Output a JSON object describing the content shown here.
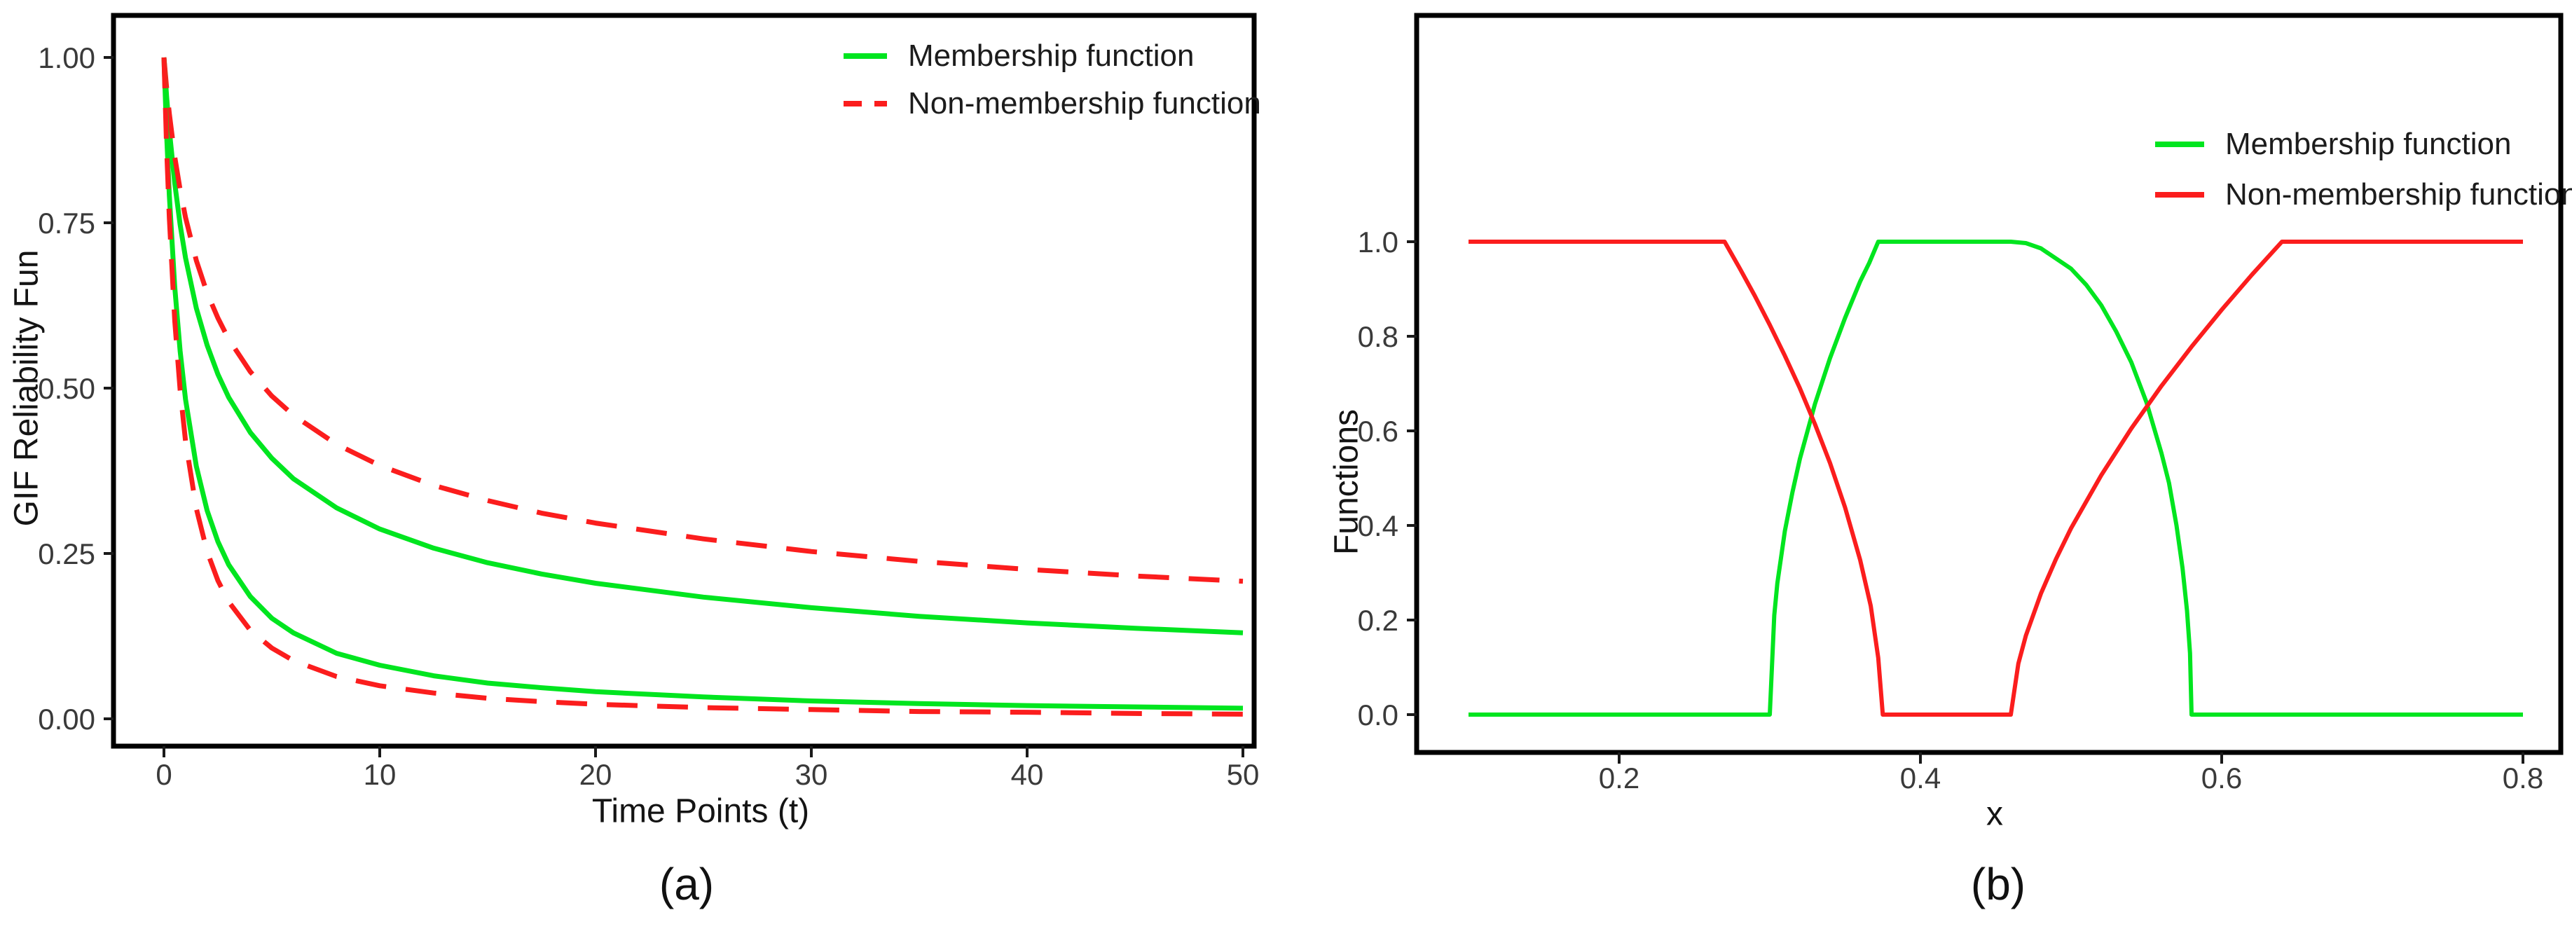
{
  "figure": {
    "background": "#ffffff"
  },
  "colors": {
    "membership": "#00E51F",
    "non_membership": "#FB1D1D",
    "frame": "#000000",
    "tick_mark": "#1a1a1a",
    "tick_text": "#3a3a3a",
    "label_text": "#141414"
  },
  "chart_data": [
    {
      "id": "a",
      "type": "line",
      "caption": "(a)",
      "xlabel": "Time Points (t)",
      "ylabel": "GIF Reliability Fun",
      "xlim": [
        0,
        50
      ],
      "ylim": [
        0,
        1
      ],
      "grid": false,
      "legend_position": "top-right-inside",
      "xticks": {
        "values": [
          0,
          10,
          20,
          30,
          40,
          50
        ],
        "labels": [
          "0",
          "10",
          "20",
          "30",
          "40",
          "50"
        ]
      },
      "yticks": {
        "values": [
          1,
          0.75,
          0.5,
          0.25,
          0
        ],
        "labels": [
          "1.00",
          "0.75",
          "0.50",
          "0.25",
          "0.00"
        ]
      },
      "legend": [
        {
          "label": "Membership function",
          "color_key": "membership",
          "style": "solid"
        },
        {
          "label": "Non-membership function",
          "color_key": "non_membership",
          "style": "dashed"
        }
      ],
      "series": [
        {
          "name": "membership-upper",
          "color_key": "membership",
          "style": "solid",
          "x": [
            0,
            0.125,
            0.25,
            0.5,
            0.75,
            1,
            1.5,
            2,
            2.5,
            3,
            4,
            5,
            6,
            8,
            10,
            12.5,
            15,
            17.5,
            20,
            25,
            30,
            35,
            40,
            45,
            50
          ],
          "y": [
            1,
            0.941,
            0.89,
            0.81,
            0.747,
            0.697,
            0.621,
            0.565,
            0.521,
            0.486,
            0.433,
            0.394,
            0.363,
            0.319,
            0.287,
            0.258,
            0.236,
            0.219,
            0.205,
            0.184,
            0.168,
            0.155,
            0.145,
            0.137,
            0.13
          ]
        },
        {
          "name": "non-membership-upper",
          "color_key": "non_membership",
          "style": "dashed",
          "x": [
            0,
            0.125,
            0.25,
            0.5,
            0.75,
            1,
            1.5,
            2,
            2.5,
            3,
            4,
            5,
            6,
            8,
            10,
            12.5,
            15,
            17.5,
            20,
            25,
            30,
            35,
            40,
            45,
            50
          ],
          "y": [
            1,
            0.954,
            0.915,
            0.85,
            0.8,
            0.758,
            0.693,
            0.644,
            0.606,
            0.574,
            0.525,
            0.488,
            0.459,
            0.415,
            0.383,
            0.353,
            0.33,
            0.311,
            0.296,
            0.272,
            0.253,
            0.238,
            0.226,
            0.216,
            0.208
          ]
        },
        {
          "name": "membership-lower",
          "color_key": "membership",
          "style": "solid",
          "x": [
            0,
            0.125,
            0.25,
            0.5,
            0.75,
            1,
            1.5,
            2,
            2.5,
            3,
            4,
            5,
            6,
            8,
            10,
            12.5,
            15,
            17.5,
            20,
            25,
            30,
            35,
            40,
            45,
            50
          ],
          "y": [
            1,
            0.884,
            0.791,
            0.653,
            0.556,
            0.483,
            0.382,
            0.315,
            0.268,
            0.233,
            0.185,
            0.152,
            0.13,
            0.099,
            0.081,
            0.065,
            0.054,
            0.047,
            0.041,
            0.033,
            0.027,
            0.023,
            0.02,
            0.018,
            0.016
          ]
        },
        {
          "name": "non-membership-lower",
          "color_key": "non_membership",
          "style": "dashed",
          "x": [
            0,
            0.125,
            0.25,
            0.5,
            0.75,
            1,
            1.5,
            2,
            2.5,
            3,
            4,
            5,
            6,
            8,
            10,
            12.5,
            15,
            17.5,
            20,
            25,
            30,
            35,
            40,
            45,
            50
          ],
          "y": [
            1,
            0.863,
            0.757,
            0.602,
            0.497,
            0.42,
            0.318,
            0.253,
            0.209,
            0.177,
            0.134,
            0.107,
            0.088,
            0.064,
            0.05,
            0.039,
            0.031,
            0.026,
            0.022,
            0.017,
            0.014,
            0.011,
            0.01,
            0.008,
            0.007
          ]
        }
      ]
    },
    {
      "id": "b",
      "type": "line",
      "caption": "(b)",
      "xlabel": "x",
      "ylabel": "Functions",
      "xlim": [
        0.1,
        0.8
      ],
      "ylim": [
        0,
        1
      ],
      "grid": false,
      "legend_position": "top-right-inside",
      "xticks": {
        "values": [
          0.2,
          0.4,
          0.6,
          0.8
        ],
        "labels": [
          "0.2",
          "0.4",
          "0.6",
          "0.8"
        ]
      },
      "yticks": {
        "values": [
          1,
          0.8,
          0.6,
          0.4,
          0.2,
          0
        ],
        "labels": [
          "1.0",
          "0.8",
          "0.6",
          "0.4",
          "0.2",
          "0.0"
        ]
      },
      "legend": [
        {
          "label": "Membership function",
          "color_key": "membership",
          "style": "solid"
        },
        {
          "label": "Non-membership function",
          "color_key": "non_membership",
          "style": "solid"
        }
      ],
      "series": [
        {
          "name": "membership",
          "color_key": "membership",
          "style": "solid",
          "x": [
            0.1,
            0.2,
            0.28,
            0.3,
            0.303,
            0.305,
            0.31,
            0.315,
            0.32,
            0.33,
            0.34,
            0.35,
            0.36,
            0.366,
            0.372,
            0.4,
            0.43,
            0.46,
            0.47,
            0.48,
            0.5,
            0.51,
            0.52,
            0.53,
            0.54,
            0.55,
            0.56,
            0.565,
            0.57,
            0.574,
            0.577,
            0.579,
            0.58,
            0.6,
            0.65,
            0.7,
            0.75,
            0.8
          ],
          "y": [
            0,
            0,
            0,
            0,
            0.21,
            0.278,
            0.388,
            0.47,
            0.541,
            0.657,
            0.754,
            0.839,
            0.916,
            0.955,
            1,
            1,
            1,
            1,
            0.997,
            0.986,
            0.943,
            0.909,
            0.866,
            0.81,
            0.745,
            0.661,
            0.553,
            0.49,
            0.4,
            0.31,
            0.22,
            0.13,
            0,
            0,
            0,
            0,
            0,
            0
          ]
        },
        {
          "name": "non-membership",
          "color_key": "non_membership",
          "style": "solid",
          "x": [
            0.1,
            0.2,
            0.25,
            0.27,
            0.28,
            0.29,
            0.3,
            0.31,
            0.32,
            0.33,
            0.34,
            0.35,
            0.36,
            0.367,
            0.372,
            0.375,
            0.4,
            0.43,
            0.46,
            0.465,
            0.47,
            0.48,
            0.49,
            0.5,
            0.52,
            0.54,
            0.56,
            0.58,
            0.6,
            0.62,
            0.63,
            0.64,
            0.7,
            0.75,
            0.8
          ],
          "y": [
            1,
            1,
            1,
            1,
            0.944,
            0.886,
            0.824,
            0.759,
            0.69,
            0.614,
            0.532,
            0.438,
            0.327,
            0.23,
            0.12,
            0,
            0,
            0,
            0,
            0.108,
            0.167,
            0.256,
            0.329,
            0.394,
            0.506,
            0.605,
            0.695,
            0.778,
            0.856,
            0.93,
            0.965,
            1,
            1,
            1,
            1
          ]
        }
      ]
    }
  ]
}
